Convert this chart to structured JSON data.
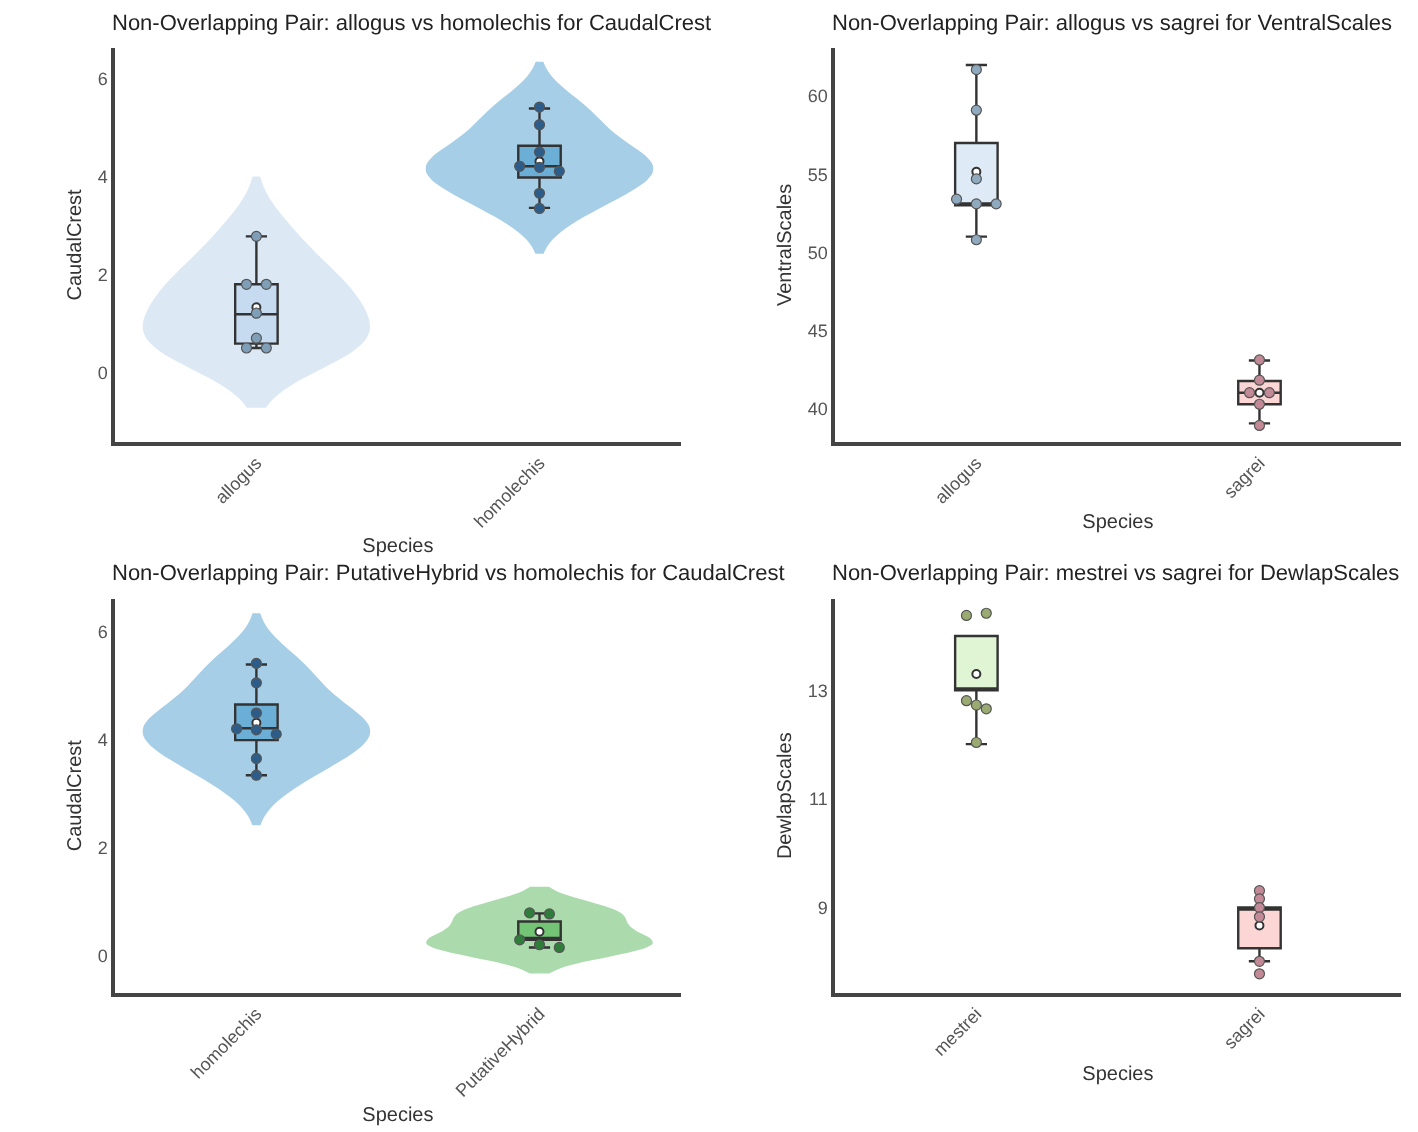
{
  "chart_data": [
    {
      "type": "box",
      "title": "Non-Overlapping Pair: allogus vs homolechis for CaudalCrest",
      "xlabel": "Species",
      "ylabel": "CaudalCrest",
      "categories": [
        "allogus",
        "homolechis"
      ],
      "ylim": [
        -1.42,
        6.63
      ],
      "yticks": [
        0,
        2,
        4,
        6
      ],
      "grid": false,
      "series": [
        {
          "colors": [
            "#c6dbef",
            "#6baed6"
          ],
          "boxes": [
            {
              "low": 0.5,
              "q1": 0.59,
              "median": 1.19,
              "q3": 1.8,
              "high": 2.78,
              "mean": 1.33
            },
            {
              "low": 3.36,
              "q1": 3.98,
              "median": 4.21,
              "q3": 4.63,
              "high": 5.39,
              "mean": 4.31
            }
          ]
        },
        {
          "type": "scatter",
          "x": [
            "allogus",
            "allogus",
            "allogus",
            "allogus",
            "allogus",
            "allogus",
            "allogus"
          ],
          "values": [
            2.78,
            1.8,
            1.8,
            1.21,
            0.7,
            0.5,
            0.5
          ],
          "color": "#7f9fb8"
        },
        {
          "type": "scatter",
          "x": [
            "homolechis",
            "homolechis",
            "homolechis",
            "homolechis",
            "homolechis",
            "homolechis",
            "homolechis",
            "homolechis"
          ],
          "values": [
            5.42,
            5.06,
            4.5,
            4.21,
            4.19,
            4.11,
            3.66,
            3.35
          ],
          "color": "#2c5d8a"
        }
      ]
    },
    {
      "type": "box",
      "title": "Non-Overlapping Pair: allogus vs sagrei for VentralScales",
      "xlabel": "Species",
      "ylabel": "VentralScales",
      "categories": [
        "allogus",
        "sagrei"
      ],
      "ylim": [
        37.84,
        63.1
      ],
      "yticks": [
        40,
        45,
        50,
        55,
        60
      ],
      "grid": false,
      "series": [
        {
          "colors": [
            "#deebf7",
            "#fcd5d5"
          ],
          "boxes": [
            {
              "low": 51.0,
              "q1": 53.0,
              "median": 53.0,
              "q3": 57.0,
              "high": 62.0,
              "mean": 55.15
            },
            {
              "low": 39.03,
              "q1": 40.26,
              "median": 41.0,
              "q3": 41.75,
              "high": 43.06,
              "mean": 41.0
            }
          ]
        },
        {
          "type": "scatter",
          "x": [
            "allogus",
            "allogus",
            "allogus",
            "allogus",
            "allogus",
            "allogus",
            "allogus"
          ],
          "values": [
            61.7,
            59.1,
            54.7,
            53.4,
            53.1,
            53.1,
            50.8
          ],
          "color": "#8fa9bf"
        },
        {
          "type": "scatter",
          "x": [
            "sagrei",
            "sagrei",
            "sagrei",
            "sagrei",
            "sagrei",
            "sagrei"
          ],
          "values": [
            43.1,
            41.8,
            41.0,
            41.0,
            40.26,
            38.9
          ],
          "color": "#c28a96"
        }
      ]
    },
    {
      "type": "box",
      "title": "Non-Overlapping Pair: PutativeHybrid vs homolechis for CaudalCrest",
      "xlabel": "Species",
      "ylabel": "CaudalCrest",
      "categories": [
        "homolechis",
        "PutativeHybrid"
      ],
      "ylim": [
        -0.68,
        6.62
      ],
      "yticks": [
        0,
        2,
        4,
        6
      ],
      "grid": false,
      "series": [
        {
          "colors": [
            "#6baed6",
            "#74c476"
          ],
          "boxes": [
            {
              "low": 3.35,
              "q1": 4.0,
              "median": 4.22,
              "q3": 4.66,
              "high": 5.4,
              "mean": 4.32
            },
            {
              "low": 0.16,
              "q1": 0.3,
              "median": 0.3,
              "q3": 0.64,
              "high": 0.79,
              "mean": 0.45
            }
          ]
        },
        {
          "type": "scatter",
          "x": [
            "homolechis",
            "homolechis",
            "homolechis",
            "homolechis",
            "homolechis",
            "homolechis",
            "homolechis",
            "homolechis"
          ],
          "values": [
            5.42,
            5.06,
            4.5,
            4.21,
            4.19,
            4.11,
            3.66,
            3.35
          ],
          "color": "#2c5d8a"
        },
        {
          "type": "scatter",
          "x": [
            "PutativeHybrid",
            "PutativeHybrid",
            "PutativeHybrid",
            "PutativeHybrid",
            "PutativeHybrid"
          ],
          "values": [
            0.8,
            0.78,
            0.3,
            0.21,
            0.16
          ],
          "color": "#2f7d3a"
        }
      ]
    },
    {
      "type": "box",
      "title": "Non-Overlapping Pair: mestrei vs sagrei for DewlapScales",
      "xlabel": "Species",
      "ylabel": "DewlapScales",
      "categories": [
        "mestrei",
        "sagrei"
      ],
      "ylim": [
        7.43,
        14.69
      ],
      "yticks": [
        9,
        11,
        13
      ],
      "grid": false,
      "series": [
        {
          "colors": [
            "#e0f5d4",
            "#fcd5d5"
          ],
          "boxes": [
            {
              "low": 12.01,
              "q1": 13.0,
              "median": 13.0,
              "q3": 14.0,
              "high": 14.0,
              "mean": 13.3
            },
            {
              "low": 8.01,
              "q1": 8.25,
              "median": 9.0,
              "q3": 9.0,
              "high": 9.0,
              "mean": 8.67
            }
          ]
        },
        {
          "type": "scatter",
          "x": [
            "mestrei",
            "mestrei",
            "mestrei",
            "mestrei",
            "mestrei",
            "mestrei"
          ],
          "values": [
            14.38,
            14.42,
            12.81,
            12.73,
            12.66,
            12.04
          ],
          "color": "#9aaa70"
        },
        {
          "type": "scatter",
          "x": [
            "sagrei",
            "sagrei",
            "sagrei",
            "sagrei",
            "sagrei",
            "sagrei"
          ],
          "values": [
            9.31,
            9.16,
            9.0,
            8.83,
            8.01,
            7.78
          ],
          "color": "#c28a96"
        }
      ]
    }
  ]
}
